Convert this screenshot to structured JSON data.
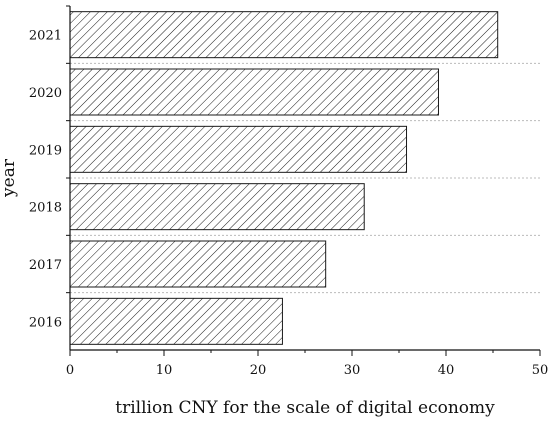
{
  "chart_data": {
    "type": "bar",
    "orientation": "horizontal",
    "categories": [
      "2016",
      "2017",
      "2018",
      "2019",
      "2020",
      "2021"
    ],
    "values": [
      22.6,
      27.2,
      31.3,
      35.8,
      39.2,
      45.5
    ],
    "xlabel": "trillion CNY for the scale of digital economy",
    "ylabel": "year",
    "xlim": [
      0,
      50
    ],
    "xticks": [
      "0",
      "10",
      "20",
      "30",
      "40",
      "50"
    ],
    "grid": "horizontal dotted",
    "bar_fill": "diagonal hatch",
    "bar_color": "#1a1a1a"
  }
}
